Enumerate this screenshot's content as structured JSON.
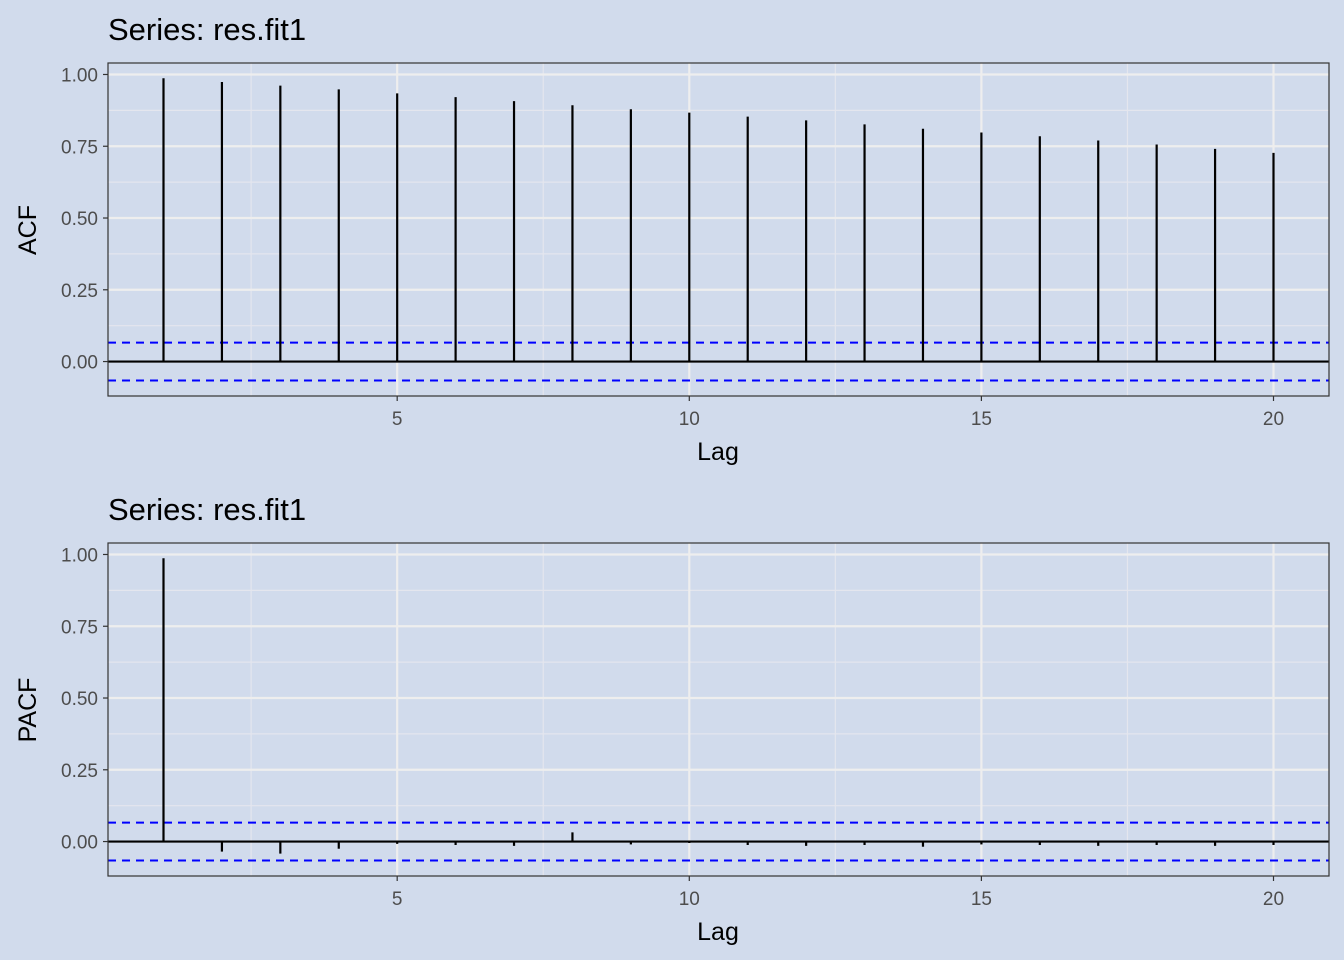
{
  "theme": {
    "background": "#d1dbec",
    "panel_background": "#d1dbec",
    "grid_major": "#eeeeee",
    "grid_minor": "#e4e6ee",
    "bar_color": "#000000",
    "ci_color": "#0000ff",
    "border_color": "#333333"
  },
  "chart_data": [
    {
      "type": "bar",
      "id": "acf",
      "title": "Series: res.fit1",
      "xlabel": "Lag",
      "ylabel": "ACF",
      "xlim": [
        0.05,
        20.95
      ],
      "ylim": [
        -0.12,
        1.04
      ],
      "x_ticks": [
        5,
        10,
        15,
        20
      ],
      "y_ticks": [
        0,
        0.25,
        0.5,
        0.75,
        1.0
      ],
      "y_tick_labels": [
        "0.00",
        "0.25",
        "0.50",
        "0.75",
        "1.00"
      ],
      "ci": [
        0.066,
        -0.066
      ],
      "grid": true,
      "x": [
        1,
        2,
        3,
        4,
        5,
        6,
        7,
        8,
        9,
        10,
        11,
        12,
        13,
        14,
        15,
        16,
        17,
        18,
        19,
        20
      ],
      "values": [
        0.987,
        0.974,
        0.961,
        0.948,
        0.934,
        0.921,
        0.907,
        0.893,
        0.879,
        0.867,
        0.853,
        0.84,
        0.826,
        0.811,
        0.798,
        0.785,
        0.77,
        0.756,
        0.741,
        0.727
      ]
    },
    {
      "type": "bar",
      "id": "pacf",
      "title": "Series: res.fit1",
      "xlabel": "Lag",
      "ylabel": "PACF",
      "xlim": [
        0.05,
        20.95
      ],
      "ylim": [
        -0.12,
        1.04
      ],
      "x_ticks": [
        5,
        10,
        15,
        20
      ],
      "y_ticks": [
        0,
        0.25,
        0.5,
        0.75,
        1.0
      ],
      "y_tick_labels": [
        "0.00",
        "0.25",
        "0.50",
        "0.75",
        "1.00"
      ],
      "ci": [
        0.066,
        -0.066
      ],
      "grid": true,
      "x": [
        1,
        2,
        3,
        4,
        5,
        6,
        7,
        8,
        9,
        10,
        11,
        12,
        13,
        14,
        15,
        16,
        17,
        18,
        19,
        20
      ],
      "values": [
        0.987,
        -0.035,
        -0.042,
        -0.025,
        -0.008,
        -0.012,
        -0.015,
        0.032,
        -0.01,
        -0.005,
        -0.012,
        -0.015,
        -0.012,
        -0.018,
        -0.01,
        -0.012,
        -0.015,
        -0.012,
        -0.015,
        -0.012
      ]
    }
  ]
}
